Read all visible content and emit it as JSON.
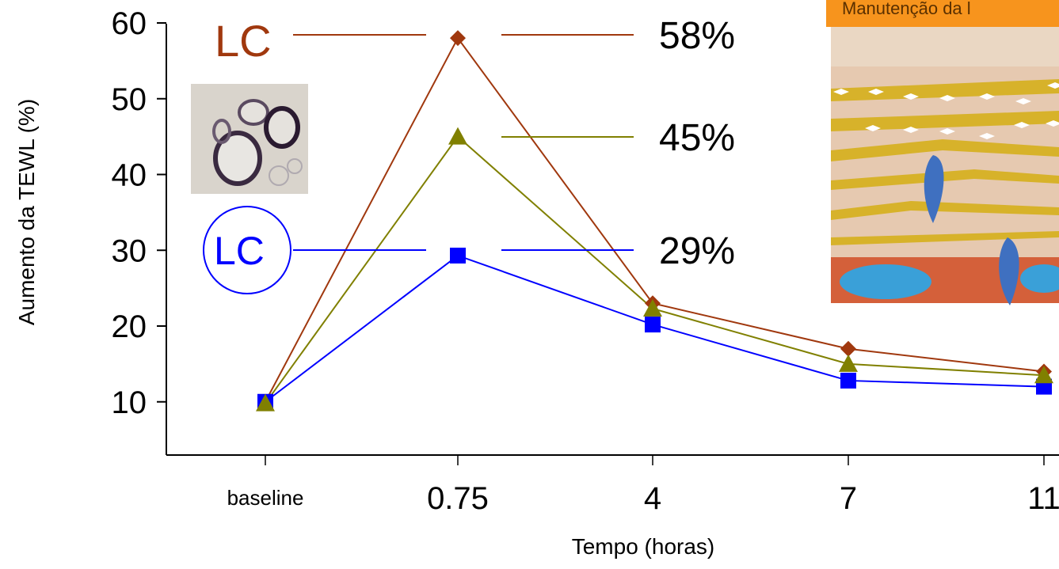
{
  "chart_data": {
    "type": "line",
    "categories": [
      "baseline",
      "0.75",
      "4",
      "7",
      "11"
    ],
    "ylabel": "Aumento da TEWL (%)",
    "xlabel": "Tempo (horas)",
    "yticks": [
      "10",
      "20",
      "30",
      "40",
      "50",
      "60"
    ],
    "ylim": [
      0,
      60
    ],
    "grid": false,
    "series": [
      {
        "name": "LC",
        "color": "#a0380e",
        "marker": "diamond",
        "values": [
          10,
          58,
          23,
          17,
          14
        ],
        "peak_label": "58%"
      },
      {
        "name": "",
        "color": "#808000",
        "marker": "triangle",
        "values": [
          9.8,
          45,
          22.3,
          15,
          13.5
        ],
        "peak_label": "45%"
      },
      {
        "name": "LC",
        "color": "#0000ff",
        "marker": "square",
        "values": [
          10,
          29.3,
          20.2,
          12.8,
          12
        ],
        "peak_label": "29%"
      }
    ]
  },
  "inset": {
    "banner_text": "Manutenção da l"
  },
  "colors": {
    "axis": "#000000",
    "banner": "#f7941d"
  }
}
